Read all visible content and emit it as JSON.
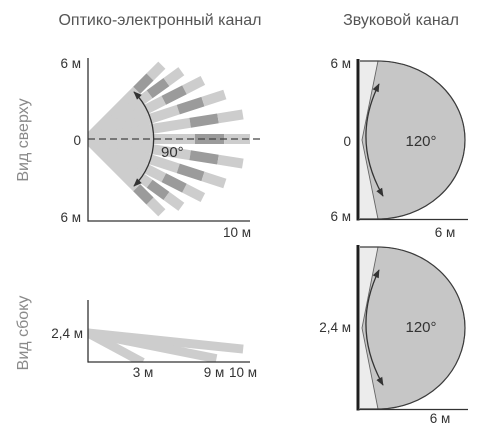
{
  "titles": {
    "optical_channel": "Оптико-электронный канал",
    "sound_channel": "Звуковой канал"
  },
  "view_labels": {
    "top_view": "Вид сверху",
    "side_view": "Вид сбоку"
  },
  "top_view": {
    "optical": {
      "y_top_label": "6 м",
      "y_zero_label": "0",
      "y_bottom_label": "6 м",
      "x_range_label": "10 м",
      "angle_label": "90°"
    },
    "sound": {
      "y_top_label": "6 м",
      "y_zero_label": "0",
      "y_bottom_label": "6 м",
      "x_range_label": "6 м",
      "angle_label": "120°"
    }
  },
  "side_view": {
    "optical": {
      "height_label": "2,4 м",
      "x_labels": [
        "3 м",
        "9 м",
        "10 м"
      ]
    },
    "sound": {
      "height_label": "2,4 м",
      "angle_label": "120°",
      "x_range_label": "6 м"
    }
  },
  "colors": {
    "beam": "#cdcdcd",
    "beam_dark": "#9b9b9b",
    "zone": "#c6c6c6",
    "zone_edge": "#ececec"
  }
}
